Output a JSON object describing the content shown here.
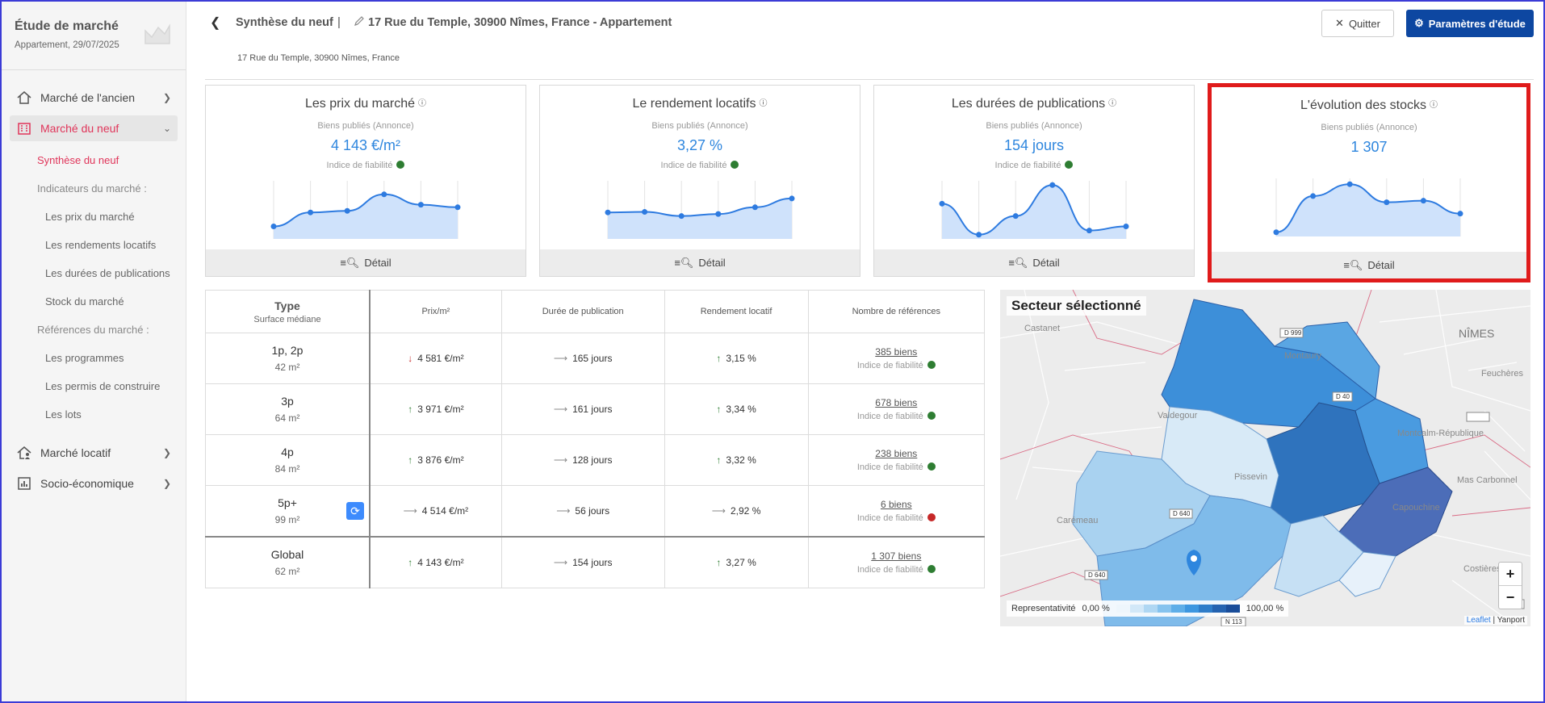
{
  "sidebar": {
    "title": "Étude de marché",
    "subtitle": "Appartement, 29/07/2025",
    "items": [
      {
        "label": "Marché de l'ancien"
      },
      {
        "label": "Marché du neuf"
      },
      {
        "label": "Marché locatif"
      },
      {
        "label": "Socio-économique"
      }
    ],
    "neuf_sub": {
      "synthese": "Synthèse du neuf",
      "indicateurs": "Indicateurs du marché :",
      "prix": "Les prix du marché",
      "rendements": "Les rendements locatifs",
      "durees": "Les durées de publications",
      "stock": "Stock du marché",
      "references": "Références du marché :",
      "programmes": "Les programmes",
      "permis": "Les permis de construire",
      "lots": "Les lots"
    }
  },
  "header": {
    "crumb": "Synthèse du neuf",
    "separator": "|",
    "property": "17 Rue du Temple, 30900 Nîmes, France - Appartement",
    "address": "17 Rue du Temple, 30900 Nîmes, France",
    "quit_label": "Quitter",
    "params_label": "Paramètres d'étude"
  },
  "cards": [
    {
      "title": "Les prix du marché",
      "sub": "Biens publiés (Annonce)",
      "value": "4 143 €/m²",
      "reliability": "Indice de fiabilité",
      "detail": "Détail",
      "points": [
        0.18,
        0.45,
        0.48,
        0.8,
        0.6,
        0.55
      ]
    },
    {
      "title": "Le rendement locatifs",
      "sub": "Biens publiés (Annonce)",
      "value": "3,27 %",
      "reliability": "Indice de fiabilité",
      "detail": "Détail",
      "points": [
        0.45,
        0.46,
        0.38,
        0.42,
        0.55,
        0.72
      ]
    },
    {
      "title": "Les durées de publications",
      "sub": "Biens publiés (Annonce)",
      "value": "154 jours",
      "reliability": "Indice de fiabilité",
      "detail": "Détail",
      "points": [
        0.62,
        0.02,
        0.38,
        0.98,
        0.1,
        0.18
      ]
    },
    {
      "title": "L'évolution des stocks",
      "sub": "Biens publiés (Annonce)",
      "value": "1 307",
      "detail": "Détail",
      "points": [
        0.02,
        0.72,
        0.95,
        0.6,
        0.63,
        0.38
      ]
    }
  ],
  "table": {
    "headers": {
      "type": "Type",
      "type_sub": "Surface médiane",
      "prix": "Prix/m²",
      "duree": "Durée de publication",
      "rendement": "Rendement locatif",
      "refs": "Nombre de références"
    },
    "reliability": "Indice de fiabilité",
    "rows": [
      {
        "type": "1p, 2p",
        "area": "42 m²",
        "prix": "4 581 €/m²",
        "duree": "165 jours",
        "rendement": "3,15 %",
        "refs": "385 biens"
      },
      {
        "type": "3p",
        "area": "64 m²",
        "prix": "3 971 €/m²",
        "duree": "161 jours",
        "rendement": "3,34 %",
        "refs": "678 biens"
      },
      {
        "type": "4p",
        "area": "84 m²",
        "prix": "3 876 €/m²",
        "duree": "128 jours",
        "rendement": "3,32 %",
        "refs": "238 biens"
      },
      {
        "type": "5p+",
        "area": "99 m²",
        "prix": "4 514 €/m²",
        "duree": "56 jours",
        "rendement": "2,92 %",
        "refs": "6 biens"
      },
      {
        "type": "Global",
        "area": "62 m²",
        "prix": "4 143 €/m²",
        "duree": "154 jours",
        "rendement": "3,27 %",
        "refs": "1 307 biens"
      }
    ]
  },
  "map": {
    "title": "Secteur sélectionné",
    "legend_label": "Representativité",
    "legend_min": "0,00 %",
    "legend_max": "100,00 %",
    "attrib_leaflet": "Leaflet",
    "attrib_sep": " | ",
    "attrib_yanport": "Yanport",
    "labels": {
      "nimes": "NÎMES",
      "castanet": "Castanet",
      "montaury": "Montaury",
      "valdegour": "Valdegour",
      "pissevin": "Pissevin",
      "caremeau": "Carémeau",
      "montcalm": "Montcalm-République",
      "mascarbonnel": "Mas Carbonnel",
      "capouchine": "Capouchine",
      "costieres": "Costières",
      "feuchere": "Feuchères",
      "d999": "D 999",
      "d40": "D 40",
      "d640": "D 640",
      "d640b": "D 640",
      "a9": "A 9",
      "n113": "N 113"
    },
    "zoom_in": "+",
    "zoom_out": "−"
  }
}
